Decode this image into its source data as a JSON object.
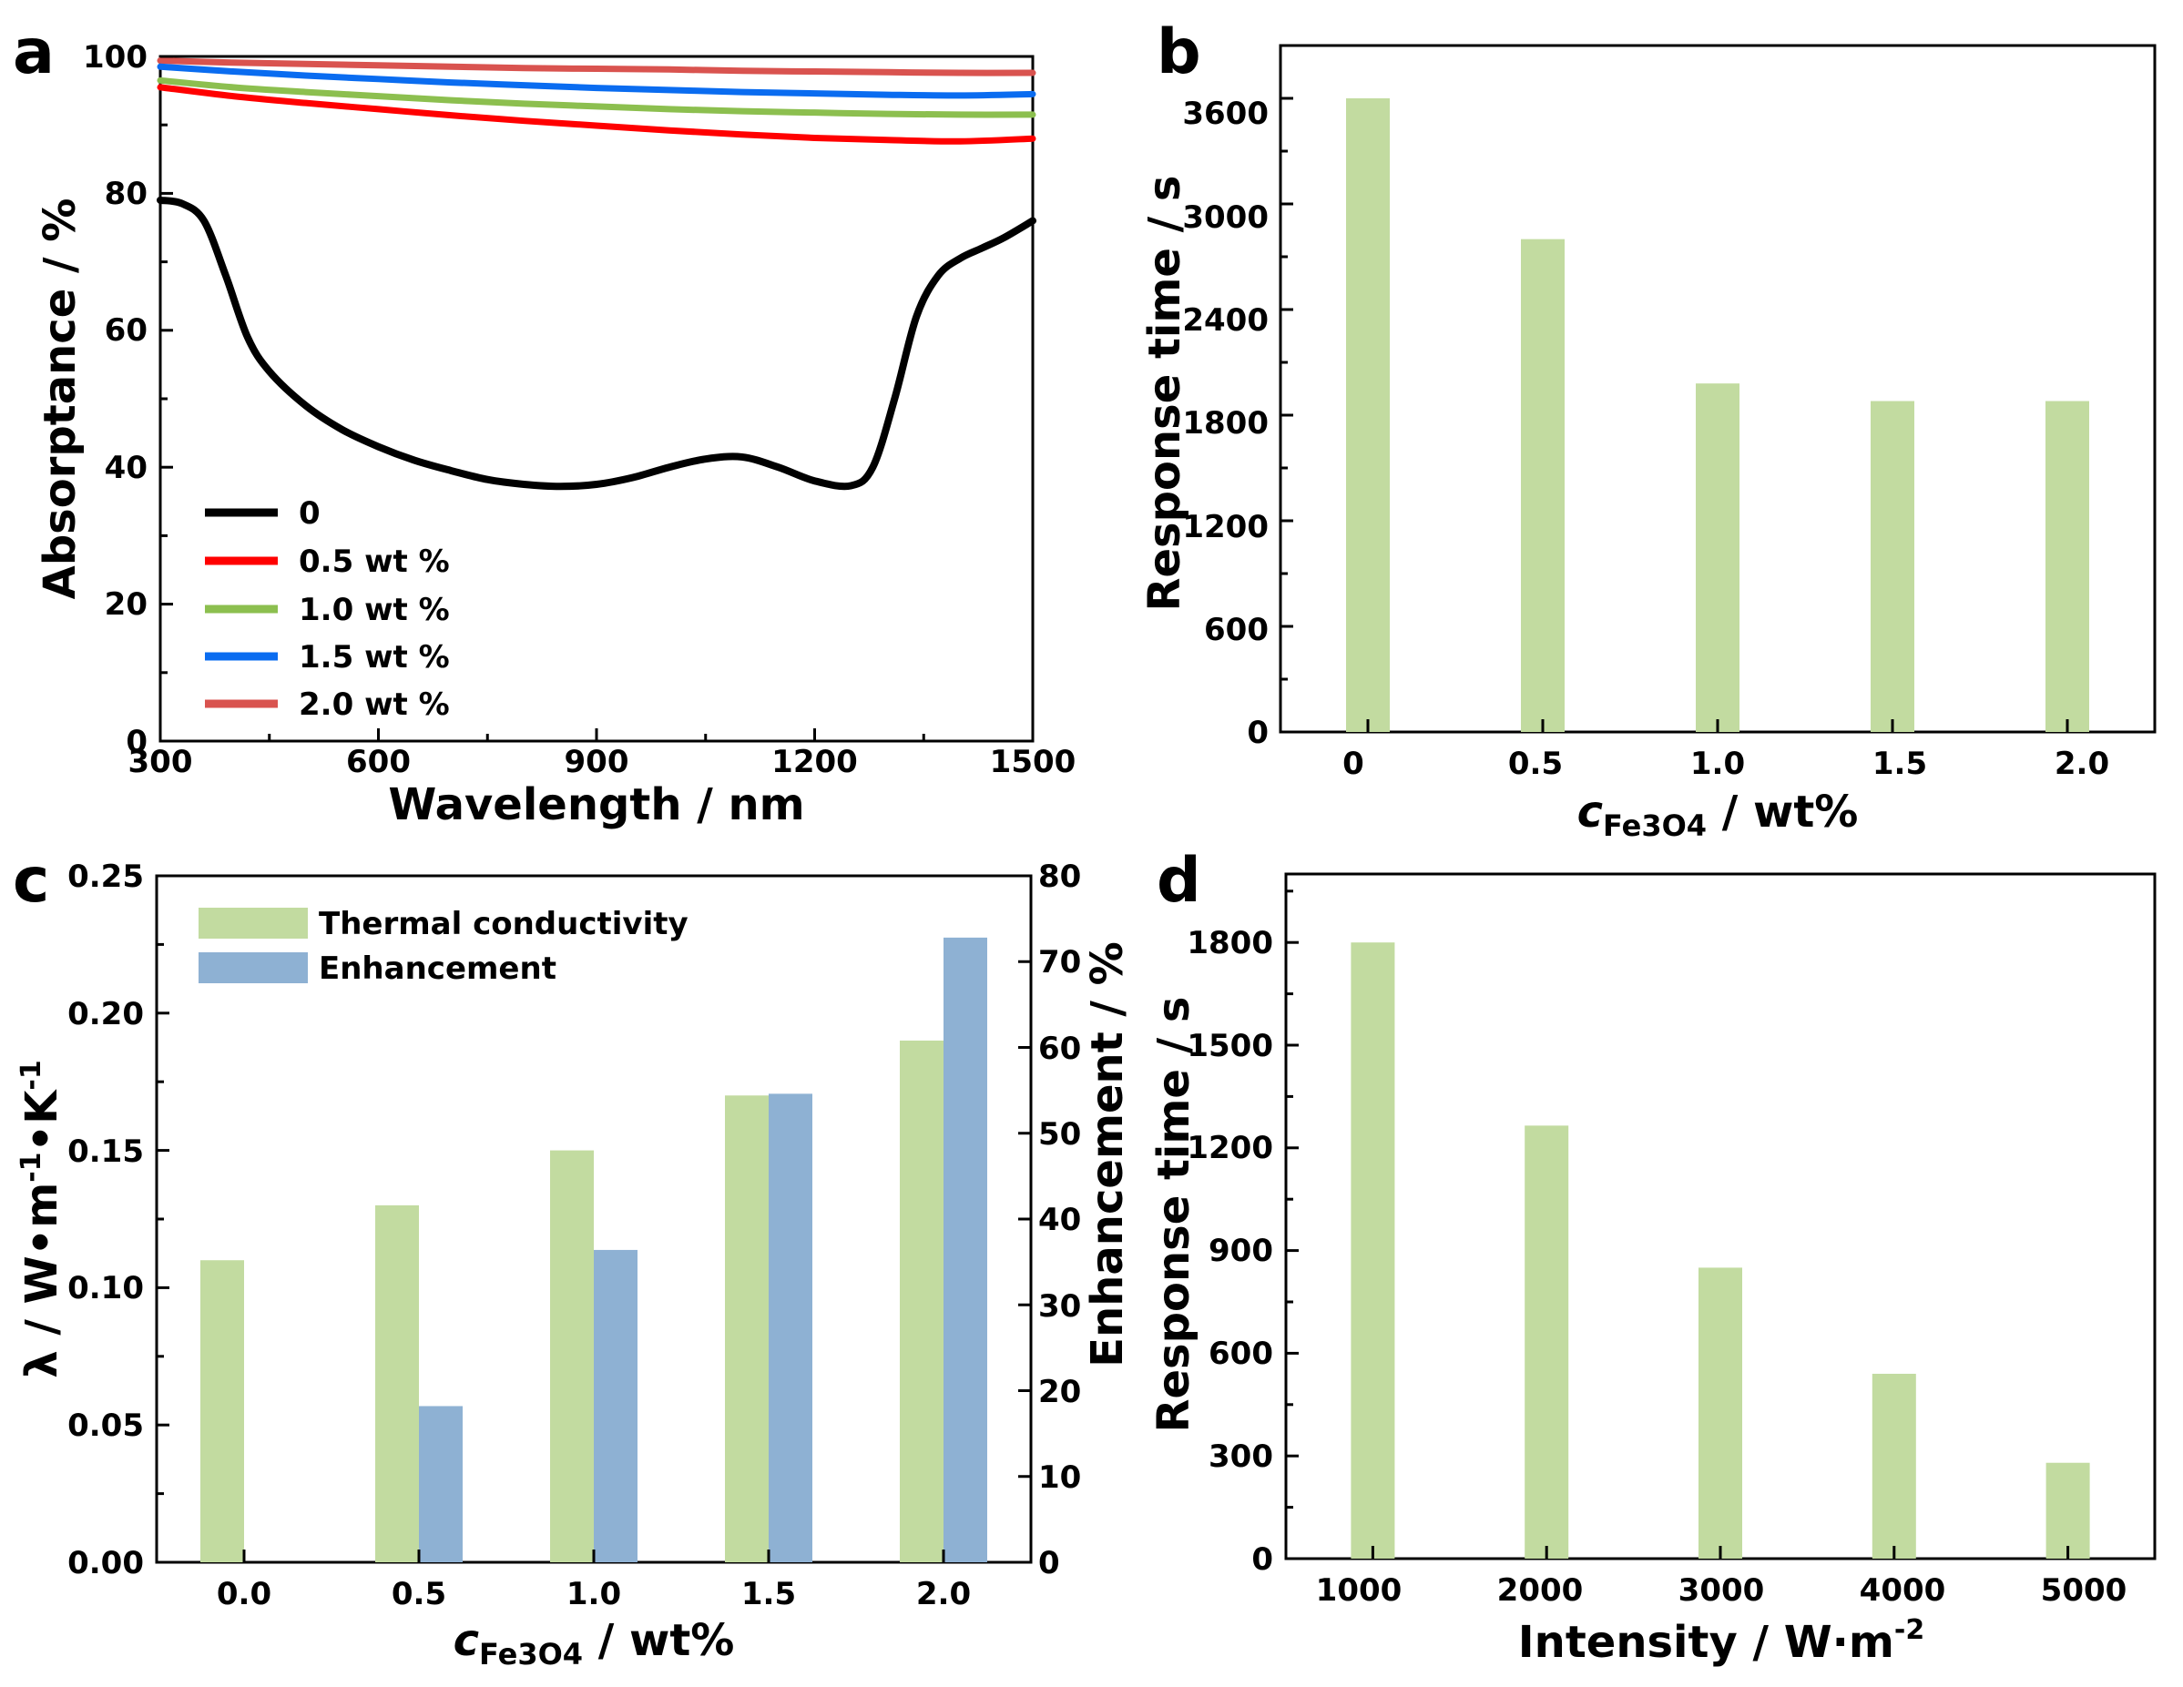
{
  "chart_data": [
    {
      "panel": "a",
      "type": "line",
      "xlabel": "Wavelength / nm",
      "ylabel": "Absorptance / %",
      "xlim": [
        300,
        1500
      ],
      "ylim": [
        0,
        100
      ],
      "xticks": [
        "300",
        "600",
        "900",
        "1200",
        "1500"
      ],
      "yticks": [
        "0",
        "20",
        "40",
        "60",
        "80",
        "100"
      ],
      "legend_position": "bottom-left",
      "series": [
        {
          "name": "0",
          "color": "#000000",
          "x": [
            300,
            330,
            360,
            390,
            420,
            450,
            500,
            550,
            600,
            650,
            700,
            750,
            800,
            850,
            900,
            950,
            1000,
            1050,
            1100,
            1150,
            1200,
            1250,
            1280,
            1310,
            1340,
            1370,
            1400,
            1430,
            1460,
            1500
          ],
          "y": [
            79,
            78.5,
            76,
            68,
            59,
            54,
            49,
            45.5,
            43,
            41,
            39.5,
            38.2,
            37.5,
            37.2,
            37.5,
            38.5,
            40,
            41.2,
            41.5,
            40,
            38,
            37.3,
            40,
            50,
            62,
            68,
            70.5,
            72,
            73.5,
            76
          ]
        },
        {
          "name": "0.5 wt %",
          "color": "#ff0000",
          "x": [
            300,
            400,
            500,
            600,
            700,
            800,
            900,
            1000,
            1100,
            1200,
            1300,
            1400,
            1500
          ],
          "y": [
            95.5,
            94.2,
            93.2,
            92.3,
            91.4,
            90.6,
            89.9,
            89.2,
            88.6,
            88.1,
            87.8,
            87.6,
            88
          ]
        },
        {
          "name": "1.0 wt %",
          "color": "#8cbf4f",
          "x": [
            300,
            400,
            500,
            600,
            700,
            800,
            900,
            1000,
            1100,
            1200,
            1300,
            1400,
            1500
          ],
          "y": [
            96.5,
            95.5,
            94.8,
            94.2,
            93.6,
            93.1,
            92.7,
            92.3,
            92,
            91.8,
            91.6,
            91.5,
            91.5
          ]
        },
        {
          "name": "1.5 wt %",
          "color": "#0a6cf0",
          "x": [
            300,
            400,
            500,
            600,
            700,
            800,
            900,
            1000,
            1100,
            1200,
            1300,
            1400,
            1500
          ],
          "y": [
            98.5,
            97.8,
            97.2,
            96.7,
            96.2,
            95.8,
            95.4,
            95.1,
            94.8,
            94.6,
            94.4,
            94.3,
            94.5
          ]
        },
        {
          "name": "2.0 wt %",
          "color": "#d9534f",
          "x": [
            300,
            400,
            500,
            600,
            700,
            800,
            900,
            1000,
            1100,
            1200,
            1300,
            1400,
            1500
          ],
          "y": [
            99.4,
            99.1,
            98.9,
            98.7,
            98.5,
            98.3,
            98.2,
            98.1,
            97.9,
            97.8,
            97.7,
            97.6,
            97.6
          ]
        }
      ]
    },
    {
      "panel": "b",
      "type": "bar",
      "categories": [
        "0",
        "0.5",
        "1.0",
        "1.5",
        "2.0"
      ],
      "values": [
        3600,
        2800,
        1980,
        1880,
        1880
      ],
      "color": "#c2dba0",
      "xlabel_main": "c",
      "xlabel_sub": "Fe3O4",
      "xlabel_rest": " / wt%",
      "ylabel": "Response time / s",
      "ylim": [
        0,
        3900
      ],
      "yticks": [
        "0",
        "600",
        "1200",
        "1800",
        "2400",
        "3000",
        "3600"
      ]
    },
    {
      "panel": "c",
      "type": "bar",
      "categories": [
        "0.0",
        "0.5",
        "1.0",
        "1.5",
        "2.0"
      ],
      "series": [
        {
          "name": "Thermal conductivity",
          "axis": "left",
          "color": "#c2dba0",
          "values": [
            0.11,
            0.13,
            0.15,
            0.17,
            0.19
          ]
        },
        {
          "name": "Enhancement",
          "axis": "right",
          "color": "#8eb1d3",
          "values": [
            0,
            18.2,
            36.4,
            54.6,
            72.8
          ]
        }
      ],
      "xlabel_main": "c",
      "xlabel_sub": "Fe3O4",
      "xlabel_rest": " / wt%",
      "ylabel_left_main": "λ / W•m",
      "ylabel_left_sup1": "-1",
      "ylabel_left_mid": "•K",
      "ylabel_left_sup2": "-1",
      "ylabel_right": "Enhancement / %",
      "ylim_left": [
        0,
        0.25
      ],
      "ylim_right": [
        0,
        80
      ],
      "yticks_left": [
        "0.00",
        "0.05",
        "0.10",
        "0.15",
        "0.20",
        "0.25"
      ],
      "yticks_right": [
        "0",
        "10",
        "20",
        "30",
        "40",
        "50",
        "60",
        "70",
        "80"
      ],
      "legend_position": "top-left"
    },
    {
      "panel": "d",
      "type": "bar",
      "categories": [
        "1000",
        "2000",
        "3000",
        "4000",
        "5000"
      ],
      "values": [
        1800,
        1265,
        850,
        540,
        280
      ],
      "color": "#c2dba0",
      "xlabel_main": "Intensity / W·m",
      "xlabel_sup": "-2",
      "ylabel": "Response time / s",
      "ylim": [
        0,
        2000
      ],
      "yticks": [
        "0",
        "300",
        "600",
        "900",
        "1200",
        "1500",
        "1800"
      ]
    }
  ]
}
